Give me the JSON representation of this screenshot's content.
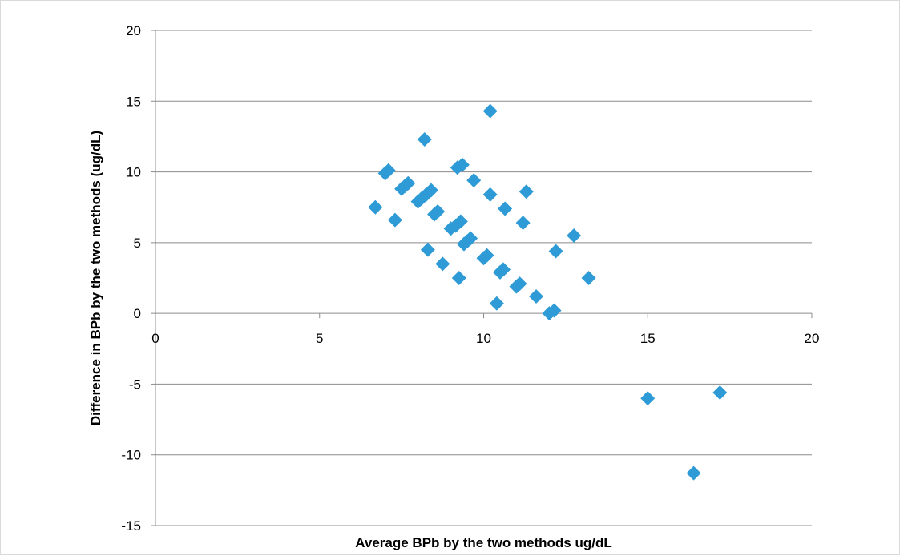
{
  "chart_data": {
    "type": "scatter",
    "title": "",
    "xlabel": "Average BPb by the two methods ug/dL",
    "ylabel": "Difference in BPb by the two methods (ug/dL)",
    "xlim": [
      0,
      20
    ],
    "ylim": [
      -15,
      20
    ],
    "x_ticks": [
      0,
      5,
      10,
      15,
      20
    ],
    "y_ticks": [
      -15,
      -10,
      -5,
      0,
      5,
      10,
      15,
      20
    ],
    "x_tick_labels": [
      "0",
      "5",
      "10",
      "15",
      "20"
    ],
    "y_tick_labels": [
      "-15",
      "-10",
      "-5",
      "0",
      "5",
      "10",
      "15",
      "20"
    ],
    "grid": "horizontal",
    "legend": "none",
    "marker": "diamond",
    "marker_color": "#2E9BD6",
    "series": [
      {
        "points": [
          [
            6.7,
            7.5
          ],
          [
            7.0,
            9.9
          ],
          [
            7.1,
            10.1
          ],
          [
            7.3,
            6.6
          ],
          [
            7.5,
            8.8
          ],
          [
            7.6,
            9.0
          ],
          [
            7.7,
            9.2
          ],
          [
            8.0,
            7.9
          ],
          [
            8.1,
            8.1
          ],
          [
            8.2,
            12.3
          ],
          [
            8.25,
            8.4
          ],
          [
            8.3,
            4.5
          ],
          [
            8.4,
            8.7
          ],
          [
            8.5,
            7.0
          ],
          [
            8.6,
            7.2
          ],
          [
            8.75,
            3.5
          ],
          [
            9.0,
            6.0
          ],
          [
            9.15,
            6.2
          ],
          [
            9.2,
            10.3
          ],
          [
            9.25,
            2.5
          ],
          [
            9.3,
            6.5
          ],
          [
            9.35,
            10.5
          ],
          [
            9.4,
            4.9
          ],
          [
            9.5,
            5.1
          ],
          [
            9.6,
            5.3
          ],
          [
            9.7,
            9.4
          ],
          [
            10.0,
            3.9
          ],
          [
            10.1,
            4.1
          ],
          [
            10.2,
            8.4
          ],
          [
            10.2,
            14.3
          ],
          [
            10.4,
            0.7
          ],
          [
            10.5,
            2.9
          ],
          [
            10.6,
            3.1
          ],
          [
            10.65,
            7.4
          ],
          [
            11.0,
            1.9
          ],
          [
            11.1,
            2.1
          ],
          [
            11.2,
            6.4
          ],
          [
            11.3,
            8.6
          ],
          [
            11.6,
            1.2
          ],
          [
            12.0,
            0.0
          ],
          [
            12.15,
            0.2
          ],
          [
            12.2,
            4.4
          ],
          [
            12.75,
            5.5
          ],
          [
            13.2,
            2.5
          ],
          [
            15.0,
            -6.0
          ],
          [
            16.4,
            -11.3
          ],
          [
            17.2,
            -5.6
          ]
        ]
      }
    ]
  }
}
